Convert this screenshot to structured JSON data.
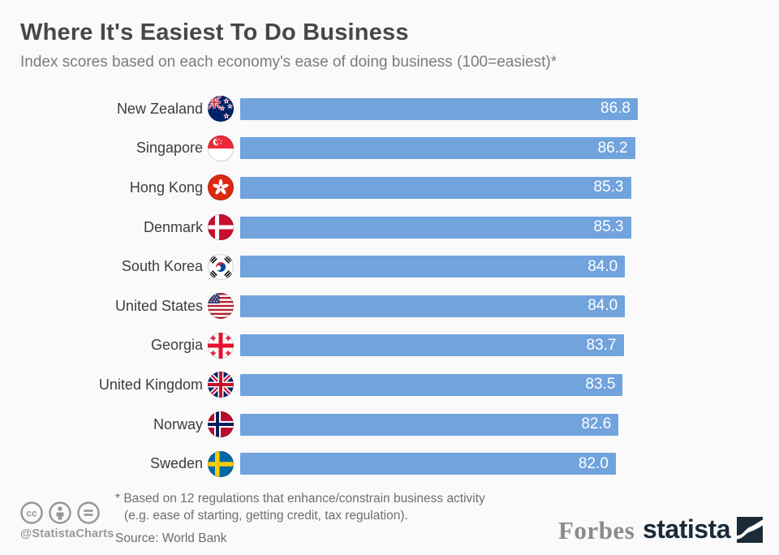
{
  "header": {
    "title": "Where It's Easiest To Do Business",
    "subtitle": "Index scores based on each economy's ease of doing business (100=easiest)*"
  },
  "chart_data": {
    "type": "bar",
    "orientation": "horizontal",
    "title": "Where It's Easiest To Do Business",
    "subtitle": "Index scores based on each economy's ease of doing business (100=easiest)*",
    "categories": [
      "New Zealand",
      "Singapore",
      "Hong Kong",
      "Denmark",
      "South Korea",
      "United States",
      "Georgia",
      "United Kingdom",
      "Norway",
      "Sweden"
    ],
    "values": [
      86.8,
      86.2,
      85.3,
      85.3,
      84.0,
      84.0,
      83.7,
      83.5,
      82.6,
      82.0
    ],
    "value_labels": [
      "86.8",
      "86.2",
      "85.3",
      "85.3",
      "84.0",
      "84.0",
      "83.7",
      "83.5",
      "82.6",
      "82.0"
    ],
    "flag_icons": [
      "new-zealand-flag-icon",
      "singapore-flag-icon",
      "hong-kong-flag-icon",
      "denmark-flag-icon",
      "south-korea-flag-icon",
      "united-states-flag-icon",
      "georgia-flag-icon",
      "united-kingdom-flag-icon",
      "norway-flag-icon",
      "sweden-flag-icon"
    ],
    "flag_codes": [
      "nz",
      "sg",
      "hk",
      "dk",
      "kr",
      "us",
      "ge",
      "gb",
      "no",
      "se"
    ],
    "xlim": [
      0,
      86.8
    ],
    "grid": false,
    "legend": false,
    "bar_color": "#71A3DD",
    "value_label_color": "#FFFFFF"
  },
  "footer": {
    "license_icons": [
      "cc-icon",
      "attribution-icon",
      "no-derivatives-icon"
    ],
    "handle": "@StatistaCharts",
    "footnote_line1": "* Based on 12 regulations that enhance/constrain business activity",
    "footnote_line2": "(e.g. ease of starting, getting credit, tax regulation).",
    "source": "Source: World Bank",
    "forbes_logo_text": "Forbes",
    "statista_logo_text": "statista",
    "statista_brand_color": "#1b2a38"
  }
}
